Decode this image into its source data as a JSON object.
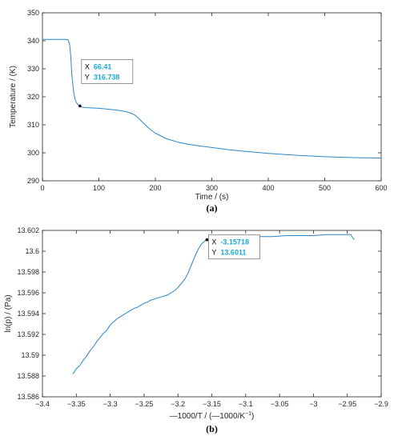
{
  "colors": {
    "line": "#2a86c8",
    "value_text": "#1ba9d6",
    "axis": "#262626"
  },
  "chart_data": [
    {
      "type": "line",
      "panel_label": "(a)",
      "xlabel": "Time / (s)",
      "ylabel": "Temperature / (K)",
      "xlim": [
        0,
        600
      ],
      "ylim": [
        290,
        350
      ],
      "xticks": [
        0,
        100,
        200,
        300,
        400,
        500,
        600
      ],
      "yticks": [
        290,
        300,
        310,
        320,
        330,
        340,
        350
      ],
      "grid": false,
      "x": [
        0,
        10,
        20,
        30,
        40,
        45,
        48,
        50,
        52,
        55,
        58,
        60,
        63,
        66.41,
        70,
        80,
        90,
        100,
        110,
        120,
        130,
        140,
        150,
        160,
        165,
        170,
        180,
        190,
        200,
        220,
        240,
        260,
        280,
        300,
        330,
        360,
        400,
        450,
        500,
        550,
        600
      ],
      "y": [
        340.5,
        340.5,
        340.5,
        340.5,
        340.5,
        340.4,
        339,
        335,
        328,
        322,
        319,
        318,
        317.2,
        316.738,
        316.3,
        316.1,
        316,
        315.9,
        315.7,
        315.5,
        315.3,
        315,
        314.6,
        313.9,
        313.3,
        312.4,
        310.4,
        308.5,
        307,
        305,
        303.8,
        303,
        302.4,
        301.9,
        301.1,
        300.5,
        299.8,
        299.1,
        298.6,
        298.3,
        298.1
      ],
      "datatip": {
        "x_key": "X",
        "y_key": "Y",
        "x_val": "66.41",
        "y_val": "316.738",
        "x": 66.41,
        "y": 316.738
      }
    },
    {
      "type": "line",
      "panel_label": "(b)",
      "xlabel": "—1000/T / (—1000/K",
      "xlabel_sup": "−1",
      "xlabel_close": ")",
      "ylabel": "ln(p) / (Pa)",
      "xlim": [
        -3.4,
        -2.9
      ],
      "ylim": [
        13.586,
        13.602
      ],
      "xticks": [
        -3.4,
        -3.35,
        -3.3,
        -3.25,
        -3.2,
        -3.15,
        -3.1,
        -3.05,
        -3,
        -2.95,
        -2.9
      ],
      "xtick_labels": [
        "−3.4",
        "−3.35",
        "−3.3",
        "−3.25",
        "−3.2",
        "−3.15",
        "−3.1",
        "−3.05",
        "−3",
        "−2.95",
        "−2.9"
      ],
      "yticks": [
        13.586,
        13.588,
        13.59,
        13.592,
        13.594,
        13.596,
        13.598,
        13.6,
        13.602
      ],
      "ytick_labels": [
        "13.586",
        "13.588",
        "13.59",
        "13.592",
        "13.594",
        "13.596",
        "13.598",
        "13.6",
        "13.602"
      ],
      "grid": false,
      "x": [
        -3.355,
        -3.353,
        -3.35,
        -3.345,
        -3.34,
        -3.335,
        -3.33,
        -3.325,
        -3.32,
        -3.315,
        -3.31,
        -3.305,
        -3.3,
        -3.295,
        -3.29,
        -3.285,
        -3.28,
        -3.275,
        -3.27,
        -3.265,
        -3.26,
        -3.255,
        -3.25,
        -3.245,
        -3.24,
        -3.235,
        -3.23,
        -3.225,
        -3.22,
        -3.215,
        -3.21,
        -3.205,
        -3.2,
        -3.195,
        -3.19,
        -3.185,
        -3.18,
        -3.175,
        -3.17,
        -3.165,
        -3.16,
        -3.15718,
        -3.15,
        -3.14,
        -3.12,
        -3.1,
        -3.08,
        -3.06,
        -3.04,
        -3.02,
        -3,
        -2.98,
        -2.96,
        -2.945,
        -2.942,
        -2.94
      ],
      "y": [
        13.5882,
        13.5884,
        13.5887,
        13.589,
        13.5895,
        13.5899,
        13.5904,
        13.5908,
        13.5913,
        13.5917,
        13.5921,
        13.5924,
        13.5929,
        13.5932,
        13.5935,
        13.5937,
        13.5939,
        13.5941,
        13.5943,
        13.5945,
        13.5946,
        13.5948,
        13.595,
        13.5951,
        13.5953,
        13.5954,
        13.5955,
        13.5956,
        13.5957,
        13.5958,
        13.596,
        13.5962,
        13.5965,
        13.5969,
        13.5973,
        13.5979,
        13.5987,
        13.5995,
        13.6002,
        13.6007,
        13.601,
        13.6011,
        13.6012,
        13.6012,
        13.6013,
        13.6013,
        13.6014,
        13.6014,
        13.6015,
        13.6015,
        13.6015,
        13.6016,
        13.6016,
        13.6016,
        13.6013,
        13.6011
      ],
      "datatip": {
        "x_key": "X",
        "y_key": "Y",
        "x_val": "-3.15718",
        "y_val": "13.6011",
        "x": -3.15718,
        "y": 13.6011
      }
    }
  ]
}
